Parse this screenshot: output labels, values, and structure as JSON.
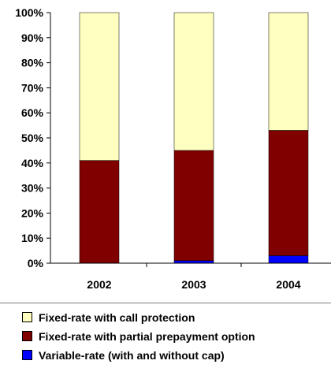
{
  "chart_data": {
    "type": "bar",
    "stacked": true,
    "categories": [
      "2002",
      "2003",
      "2004"
    ],
    "series": [
      {
        "name": "Variable-rate (with and without cap)",
        "color": "#0000ff",
        "values": [
          0,
          1,
          3
        ]
      },
      {
        "name": "Fixed-rate with partial prepayment option",
        "color": "#800000",
        "values": [
          41,
          44,
          50
        ]
      },
      {
        "name": "Fixed-rate with call protection",
        "color": "#ffffc0",
        "values": [
          59,
          55,
          47
        ]
      }
    ],
    "ylim": [
      0,
      100
    ],
    "yticks": [
      "0%",
      "10%",
      "20%",
      "30%",
      "40%",
      "50%",
      "60%",
      "70%",
      "80%",
      "90%",
      "100%"
    ],
    "grid": false,
    "legend_position": "bottom",
    "legend_order": [
      2,
      1,
      0
    ]
  }
}
